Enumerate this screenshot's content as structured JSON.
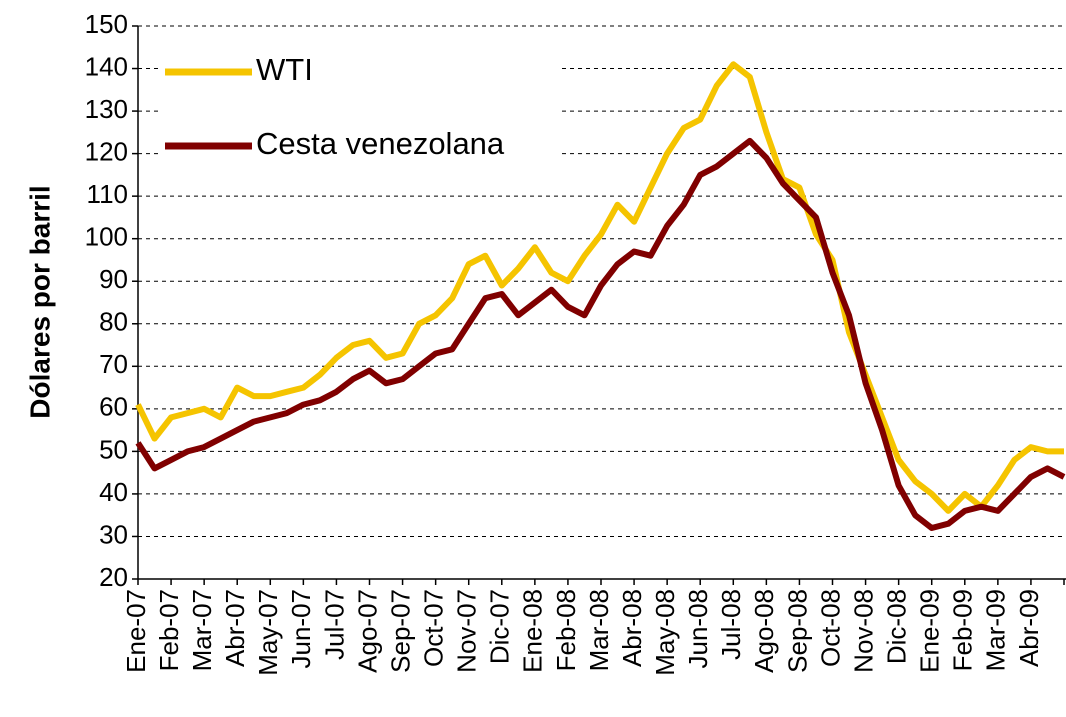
{
  "chart_data": {
    "type": "line",
    "y_label": "Dólares por barril",
    "categories": [
      "Ene-07",
      null,
      "Feb-07",
      null,
      "Mar-07",
      null,
      "Abr-07",
      null,
      "May-07",
      null,
      "Jun-07",
      null,
      "Jul-07",
      null,
      "Ago-07",
      null,
      "Sep-07",
      null,
      "Oct-07",
      null,
      "Nov-07",
      null,
      "Dic-07",
      null,
      "Ene-08",
      null,
      "Feb-08",
      null,
      "Mar-08",
      null,
      "Abr-08",
      null,
      "May-08",
      null,
      "Jun-08",
      null,
      "Jul-08",
      null,
      "Ago-08",
      null,
      "Sep-08",
      null,
      "Oct-08",
      null,
      "Nov-08",
      null,
      "Dic-08",
      null,
      "Ene-09",
      null,
      "Feb-09",
      null,
      "Mar-09",
      null,
      "Abr-09",
      null,
      null
    ],
    "series": [
      {
        "name": "WTI",
        "color": "#f5c400",
        "values": [
          61,
          53,
          58,
          59,
          60,
          58,
          65,
          63,
          63,
          64,
          65,
          68,
          72,
          75,
          76,
          72,
          73,
          80,
          82,
          86,
          94,
          96,
          89,
          93,
          98,
          92,
          90,
          96,
          101,
          108,
          104,
          112,
          120,
          126,
          128,
          136,
          141,
          138,
          125,
          114,
          112,
          101,
          95,
          78,
          68,
          58,
          48,
          43,
          40,
          36,
          40,
          37,
          42,
          48,
          51,
          50,
          50
        ]
      },
      {
        "name": "Cesta venezolana",
        "color": "#800000",
        "values": [
          52,
          46,
          48,
          50,
          51,
          53,
          55,
          57,
          58,
          59,
          61,
          62,
          64,
          67,
          69,
          66,
          67,
          70,
          73,
          74,
          80,
          86,
          87,
          82,
          85,
          88,
          84,
          82,
          89,
          94,
          97,
          96,
          103,
          108,
          115,
          117,
          120,
          123,
          119,
          113,
          109,
          105,
          92,
          82,
          66,
          55,
          42,
          35,
          32,
          33,
          36,
          37,
          36,
          40,
          44,
          46,
          44
        ]
      }
    ],
    "ylim": [
      20,
      150
    ],
    "yticks": [
      20,
      30,
      40,
      50,
      60,
      70,
      80,
      90,
      100,
      110,
      120,
      130,
      140,
      150
    ],
    "grid": true,
    "legend": "upper left"
  }
}
